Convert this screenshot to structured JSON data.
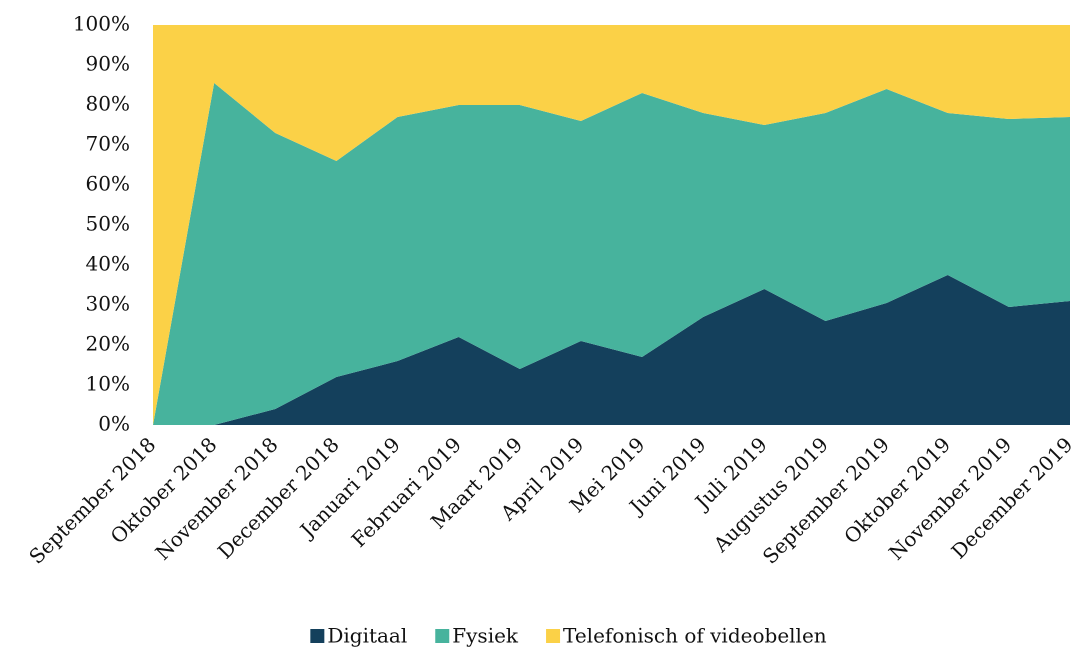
{
  "chart_data": {
    "type": "stacked_area",
    "categories": [
      "September 2018",
      "Oktober 2018",
      "November 2018",
      "December 2018",
      "Januari 2019",
      "Februari 2019",
      "Maart 2019",
      "April 2019",
      "Mei 2019",
      "Juni 2019",
      "Juli 2019",
      "Augustus 2019",
      "September 2019",
      "Oktober 2019",
      "November 2019",
      "December 2019"
    ],
    "series": [
      {
        "name": "Digitaal",
        "color": "#14405c",
        "values": [
          0,
          0,
          4,
          12,
          16,
          22,
          14,
          21,
          17,
          27,
          34,
          26,
          30.5,
          37.5,
          29.5,
          31
        ]
      },
      {
        "name": "Fysiek",
        "color": "#47b39d",
        "values": [
          0,
          85.5,
          69,
          54,
          61,
          58,
          66,
          55,
          66,
          51,
          41,
          52,
          53.5,
          40.5,
          47,
          46
        ]
      },
      {
        "name": "Telefonisch of videobellen",
        "color": "#fbd147",
        "values": [
          100,
          14.5,
          27,
          34,
          23,
          20,
          20,
          24,
          17,
          22,
          25,
          22,
          16,
          22,
          23.5,
          23
        ]
      }
    ],
    "ylim": [
      0,
      100
    ],
    "yticks": [
      {
        "value": 0,
        "label": "0%"
      },
      {
        "value": 10,
        "label": "10%"
      },
      {
        "value": 20,
        "label": "20%"
      },
      {
        "value": 30,
        "label": "30%"
      },
      {
        "value": 40,
        "label": "40%"
      },
      {
        "value": 50,
        "label": "50%"
      },
      {
        "value": 60,
        "label": "60%"
      },
      {
        "value": 70,
        "label": "70%"
      },
      {
        "value": 80,
        "label": "80%"
      },
      {
        "value": 90,
        "label": "90%"
      },
      {
        "value": 100,
        "label": "100%"
      }
    ],
    "legend": "bottom"
  }
}
